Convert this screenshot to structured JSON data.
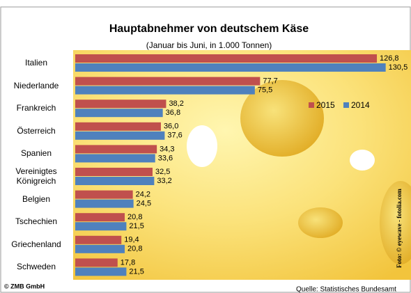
{
  "chart_data": {
    "type": "bar",
    "orientation": "horizontal",
    "title": "Hauptabnehmer von deutschem Käse",
    "subtitle": "(Januar bis Juni, in 1.000 Tonnen)",
    "categories": [
      "Italien",
      "Niederlande",
      "Frankreich",
      "Österreich",
      "Spanien",
      "Vereinigtes Königreich",
      "Belgien",
      "Tschechien",
      "Griechenland",
      "Schweden"
    ],
    "series": [
      {
        "name": "2015",
        "color": "#c0504d",
        "values": [
          126.8,
          77.7,
          38.2,
          36.0,
          34.3,
          32.5,
          24.2,
          20.8,
          19.4,
          17.8
        ],
        "value_labels": [
          "126,8",
          "77,7",
          "38,2",
          "36,0",
          "34,3",
          "32,5",
          "24,2",
          "20,8",
          "19,4",
          "17,8"
        ]
      },
      {
        "name": "2014",
        "color": "#4f81bd",
        "values": [
          130.5,
          75.5,
          36.8,
          37.6,
          33.6,
          33.2,
          24.5,
          21.5,
          20.8,
          21.5
        ],
        "value_labels": [
          "130,5",
          "75,5",
          "36,8",
          "37,6",
          "33,6",
          "33,2",
          "24,5",
          "21,5",
          "20,8",
          "21,5"
        ]
      }
    ],
    "source": "Quelle: Statistisches Bundesamt",
    "copyright": "© ZMB GmbH",
    "photo_credit": "Foto: © eyewave - fotolia.com"
  }
}
